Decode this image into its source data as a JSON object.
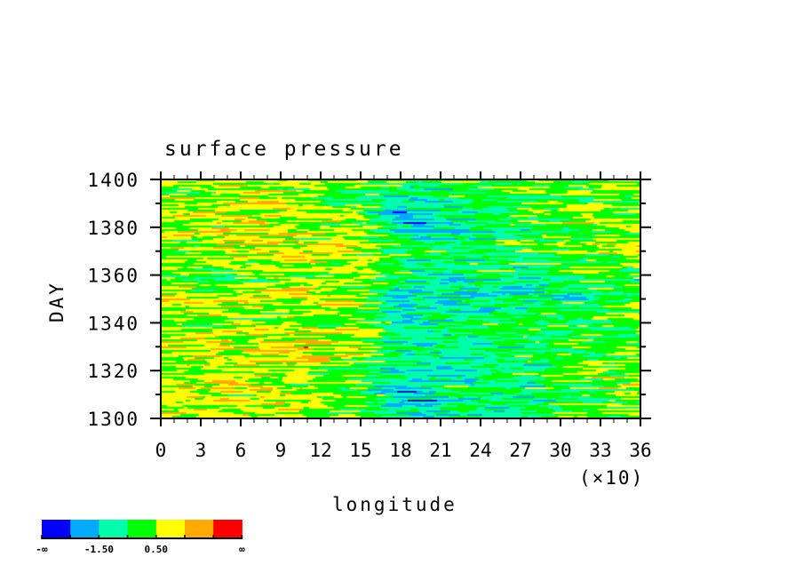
{
  "chart_data": {
    "type": "heatmap",
    "title": "surface pressure",
    "xlabel": "longitude",
    "ylabel": "DAY",
    "x_scale_note": "(×10)",
    "xlim": [
      0,
      36
    ],
    "ylim": [
      1300,
      1400
    ],
    "x_ticks": [
      "0",
      "3",
      "6",
      "9",
      "12",
      "15",
      "18",
      "21",
      "24",
      "27",
      "30",
      "33",
      "36"
    ],
    "y_ticks": [
      "1300",
      "1320",
      "1340",
      "1360",
      "1380",
      "1400"
    ],
    "grid": false,
    "colorbar": {
      "position": "bottom-left",
      "boundaries": [
        -2.5,
        -1.5,
        -0.5,
        0.5,
        1.5,
        2.5
      ],
      "labels": [
        "-∞",
        "-1.50",
        "0.50",
        "∞"
      ],
      "colors": [
        "#0000ff",
        "#00aaff",
        "#00ffaa",
        "#00ff00",
        "#ffff00",
        "#ffaa00",
        "#ff0000"
      ]
    },
    "x": [
      0,
      3,
      6,
      9,
      12,
      15,
      18,
      21,
      24,
      27,
      30,
      33,
      36
    ],
    "y": [
      1400,
      1390,
      1380,
      1370,
      1360,
      1350,
      1340,
      1330,
      1320,
      1310,
      1300
    ],
    "values": [
      [
        0.3,
        0.5,
        0.4,
        0.3,
        0.2,
        0.0,
        -0.3,
        -0.5,
        -0.4,
        -0.2,
        0.0,
        0.2,
        0.3
      ],
      [
        0.6,
        0.5,
        0.6,
        0.7,
        0.5,
        0.3,
        -1.5,
        -0.8,
        -0.4,
        0.1,
        0.3,
        0.4,
        0.5
      ],
      [
        0.8,
        0.9,
        1.0,
        0.7,
        0.6,
        0.2,
        -1.6,
        -1.0,
        -0.6,
        -0.3,
        0.2,
        0.4,
        0.6
      ],
      [
        0.7,
        0.5,
        0.6,
        0.8,
        0.6,
        0.4,
        -0.6,
        -0.5,
        -0.3,
        0.0,
        0.3,
        0.5,
        0.6
      ],
      [
        0.2,
        0.1,
        0.3,
        0.4,
        0.2,
        0.0,
        -0.5,
        -0.8,
        -0.6,
        -0.7,
        -0.5,
        -0.3,
        -0.1
      ],
      [
        1.0,
        1.1,
        0.9,
        0.8,
        0.9,
        0.5,
        -1.8,
        -1.2,
        -1.0,
        -1.3,
        -0.8,
        -0.3,
        0.0
      ],
      [
        0.4,
        0.5,
        0.6,
        0.4,
        0.3,
        0.6,
        -1.2,
        -0.6,
        -0.5,
        -0.3,
        -0.2,
        0.0,
        0.2
      ],
      [
        0.9,
        1.2,
        1.0,
        1.4,
        1.2,
        0.9,
        -0.3,
        -0.5,
        -0.6,
        -0.4,
        -0.2,
        0.0,
        0.3
      ],
      [
        0.5,
        0.8,
        0.7,
        0.4,
        0.2,
        -0.2,
        -1.4,
        -1.0,
        -0.8,
        -0.6,
        -0.3,
        0.1,
        0.3
      ],
      [
        0.4,
        0.6,
        0.5,
        0.7,
        0.5,
        0.0,
        -1.5,
        -0.9,
        -0.7,
        -0.5,
        -0.2,
        0.2,
        0.4
      ],
      [
        0.8,
        1.0,
        0.9,
        1.1,
        0.7,
        0.3,
        -1.6,
        -1.2,
        -0.8,
        -0.4,
        0.0,
        0.3,
        0.5
      ]
    ]
  }
}
